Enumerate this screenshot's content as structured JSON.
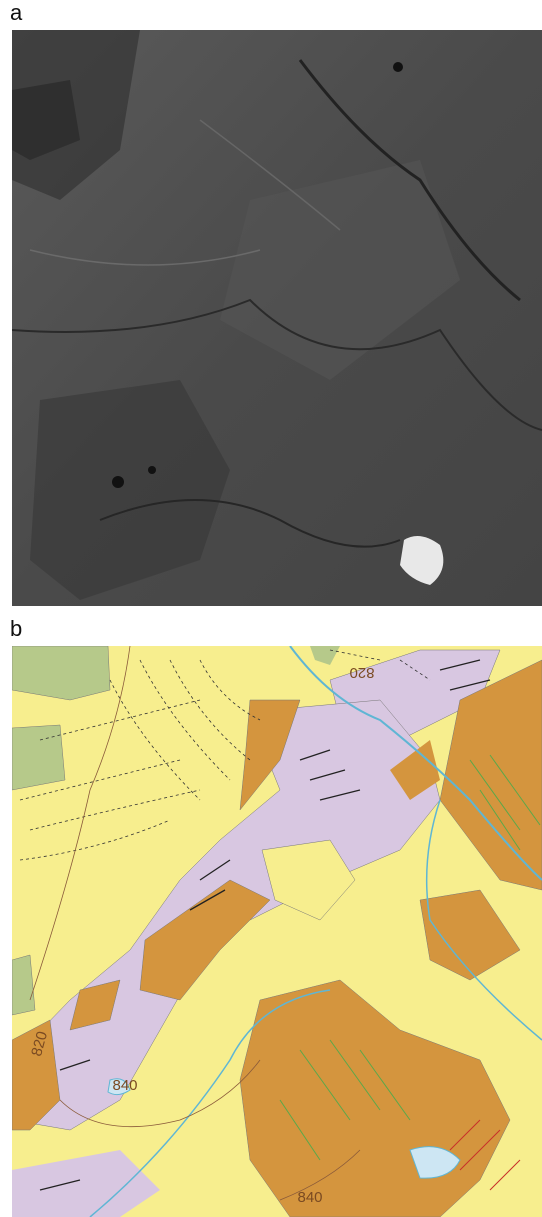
{
  "panels": [
    {
      "label": "a"
    },
    {
      "label": "b",
      "contour_labels": [
        "820",
        "820",
        "840",
        "840"
      ]
    }
  ]
}
